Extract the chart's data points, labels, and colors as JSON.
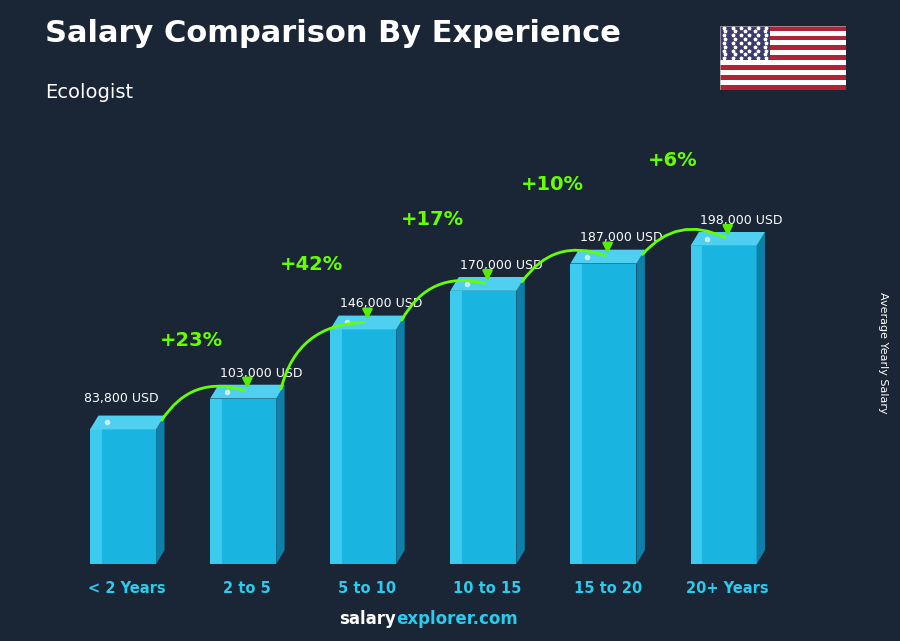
{
  "title": "Salary Comparison By Experience",
  "subtitle": "Ecologist",
  "categories": [
    "< 2 Years",
    "2 to 5",
    "5 to 10",
    "10 to 15",
    "15 to 20",
    "20+ Years"
  ],
  "values": [
    83800,
    103000,
    146000,
    170000,
    187000,
    198000
  ],
  "labels": [
    "83,800 USD",
    "103,000 USD",
    "146,000 USD",
    "170,000 USD",
    "187,000 USD",
    "198,000 USD"
  ],
  "pct_changes": [
    "+23%",
    "+42%",
    "+17%",
    "+10%",
    "+6%"
  ],
  "bar_face_color": "#1ab4e0",
  "bar_side_color": "#0e7fa8",
  "bar_top_color": "#50d0f0",
  "bar_highlight_color": "#5ee0ff",
  "bg_color": "#1a2535",
  "title_color": "#ffffff",
  "subtitle_color": "#ffffff",
  "label_color": "#ffffff",
  "pct_color": "#7fff00",
  "xlabel_color": "#29ccee",
  "ylabel_text": "Average Yearly Salary",
  "footer_salary": "salary",
  "footer_explorer": "explorer.com",
  "arc_color": "#66ff00",
  "arrow_color": "#55ee00"
}
